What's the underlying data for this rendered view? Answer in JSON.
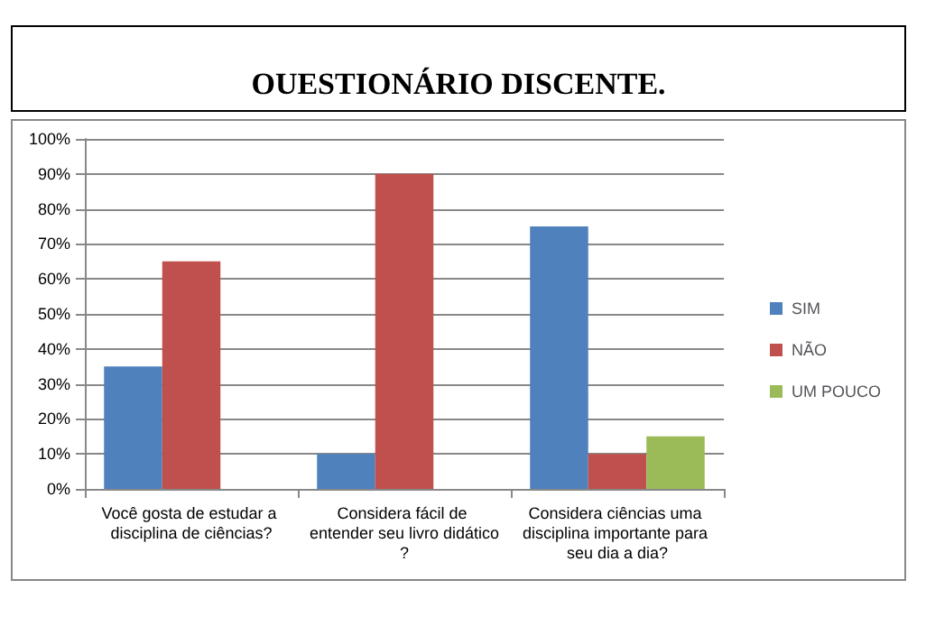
{
  "chart_data": {
    "type": "bar",
    "title": "OUESTIONÁRIO DISCENTE.",
    "categories": [
      "Você gosta de estudar a disciplina de ciências?",
      "Considera fácil de entender seu livro didático?",
      "Considera ciências uma disciplina importante para seu dia a dia?"
    ],
    "series": [
      {
        "name": "SIM",
        "color": "#4f81bd",
        "values": [
          35,
          10,
          75
        ]
      },
      {
        "name": "NÃO",
        "color": "#c0504d",
        "values": [
          65,
          90,
          10
        ]
      },
      {
        "name": "UM POUCO",
        "color": "#9bbb59",
        "values": [
          null,
          null,
          15
        ]
      }
    ],
    "ylim": [
      0,
      100
    ],
    "yticks": [
      {
        "value": 0,
        "label": "0%"
      },
      {
        "value": 10,
        "label": "10%"
      },
      {
        "value": 20,
        "label": "20%"
      },
      {
        "value": 30,
        "label": "30%"
      },
      {
        "value": 40,
        "label": "40%"
      },
      {
        "value": 50,
        "label": "50%"
      },
      {
        "value": 60,
        "label": "60%"
      },
      {
        "value": 70,
        "label": "70%"
      },
      {
        "value": 80,
        "label": "80%"
      },
      {
        "value": 90,
        "label": "90%"
      },
      {
        "value": 100,
        "label": "100%"
      }
    ],
    "grid": "y",
    "legend": "right"
  }
}
